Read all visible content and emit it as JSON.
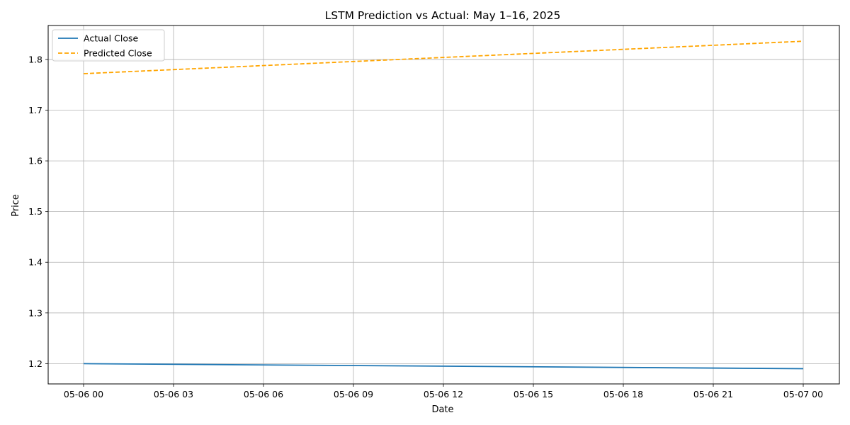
{
  "chart_data": {
    "type": "line",
    "title": "LSTM Prediction vs Actual: May 1–16, 2025",
    "xlabel": "Date",
    "ylabel": "Price",
    "x": [
      "2025-05-06 00:00",
      "2025-05-07 00:00"
    ],
    "x_ticks": [
      "05-06 00",
      "05-06 03",
      "05-06 06",
      "05-06 09",
      "05-06 12",
      "05-06 15",
      "05-06 18",
      "05-06 21",
      "05-07 00"
    ],
    "y_ticks": [
      1.2,
      1.3,
      1.4,
      1.5,
      1.6,
      1.7,
      1.8
    ],
    "ylim": [
      1.16,
      1.867
    ],
    "grid": true,
    "legend_position": "top-left",
    "series": [
      {
        "name": "Actual Close",
        "values": [
          1.2,
          1.19
        ],
        "color": "#1f77b4",
        "style": "solid"
      },
      {
        "name": "Predicted Close",
        "values": [
          1.772,
          1.836
        ],
        "color": "#ffa500",
        "style": "dashed"
      }
    ]
  }
}
